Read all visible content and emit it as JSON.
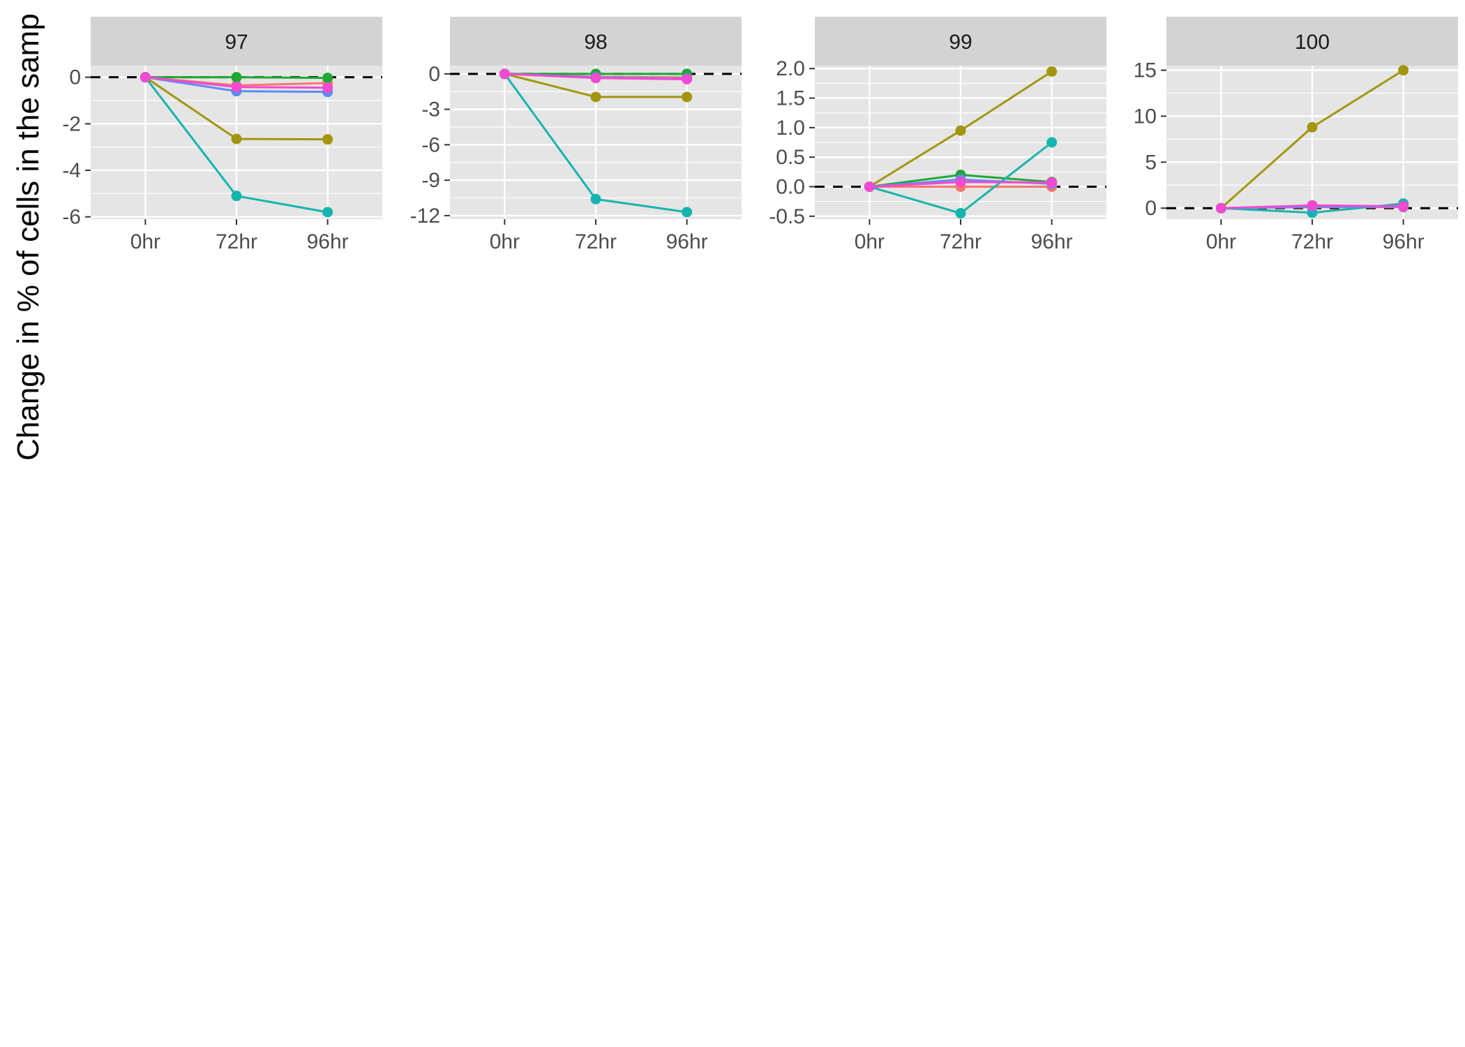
{
  "ylabel": "Change in % of cells in the samp",
  "colors": {
    "panel_bg": "#e5e5e5",
    "strip_bg": "#d3d3d3",
    "grid": "#ffffff",
    "refline": "#000000",
    "series": [
      "#f8766d",
      "#a3950d",
      "#1fa834",
      "#16b4ae",
      "#5c8cf2",
      "#f24ad0",
      "#ff62bc"
    ]
  },
  "chart_data": [
    {
      "type": "line",
      "panel": "97",
      "categories": [
        "0hr",
        "72hr",
        "96hr"
      ],
      "ylim": [
        -6.1,
        0.5
      ],
      "yticks": [
        0,
        -2,
        -4,
        -6
      ],
      "ytick_labels": [
        "0",
        "-2",
        "-4",
        "-6"
      ],
      "reference_line": 0,
      "series": [
        {
          "values": [
            0,
            -0.35,
            -0.25
          ]
        },
        {
          "values": [
            0,
            -2.65,
            -2.67
          ]
        },
        {
          "values": [
            0,
            0.0,
            -0.03
          ]
        },
        {
          "values": [
            0,
            -5.1,
            -5.8
          ]
        },
        {
          "values": [
            0,
            -0.6,
            -0.63
          ]
        },
        {
          "values": [
            0,
            -0.42,
            -0.45
          ]
        }
      ]
    },
    {
      "type": "line",
      "panel": "98",
      "categories": [
        "0hr",
        "72hr",
        "96hr"
      ],
      "ylim": [
        -12.3,
        0.7
      ],
      "yticks": [
        0,
        -3,
        -6,
        -9,
        -12
      ],
      "ytick_labels": [
        "0",
        "-3",
        "-6",
        "-9",
        "-12"
      ],
      "reference_line": 0,
      "series": [
        {
          "values": [
            0,
            -0.25,
            -0.3
          ]
        },
        {
          "values": [
            0,
            -1.95,
            -1.95
          ]
        },
        {
          "values": [
            0,
            0.0,
            0.0
          ]
        },
        {
          "values": [
            0,
            -10.6,
            -11.7
          ]
        },
        {
          "values": [
            0,
            -0.3,
            -0.4
          ]
        },
        {
          "values": [
            0,
            -0.35,
            -0.45
          ]
        }
      ]
    },
    {
      "type": "line",
      "panel": "99",
      "categories": [
        "0hr",
        "72hr",
        "96hr"
      ],
      "ylim": [
        -0.55,
        2.05
      ],
      "yticks": [
        2.0,
        1.5,
        1.0,
        0.5,
        0.0,
        -0.5
      ],
      "ytick_labels": [
        "2.0",
        "1.5",
        "1.0",
        "0.5",
        "0.0",
        "-0.5"
      ],
      "reference_line": 0,
      "series": [
        {
          "values": [
            0,
            0.0,
            0.0
          ]
        },
        {
          "values": [
            0,
            0.95,
            1.95
          ]
        },
        {
          "values": [
            0,
            0.2,
            0.08
          ]
        },
        {
          "values": [
            0,
            -0.45,
            0.75
          ]
        },
        {
          "values": [
            0,
            0.12,
            0.05
          ]
        },
        {
          "values": [
            0,
            0.08,
            0.07
          ]
        }
      ]
    },
    {
      "type": "line",
      "panel": "100",
      "categories": [
        "0hr",
        "72hr",
        "96hr"
      ],
      "ylim": [
        -1.2,
        15.5
      ],
      "yticks": [
        15,
        10,
        5,
        0
      ],
      "ytick_labels": [
        "15",
        "10",
        "5",
        "0"
      ],
      "reference_line": 0,
      "series": [
        {
          "values": [
            0,
            0.1,
            0.1
          ]
        },
        {
          "values": [
            0,
            8.8,
            15.0
          ]
        },
        {
          "values": [
            0,
            0.2,
            0.2
          ]
        },
        {
          "values": [
            0,
            -0.5,
            0.5
          ]
        },
        {
          "values": [
            0,
            0.15,
            0.15
          ]
        },
        {
          "values": [
            0,
            0.3,
            0.2
          ]
        }
      ]
    }
  ]
}
